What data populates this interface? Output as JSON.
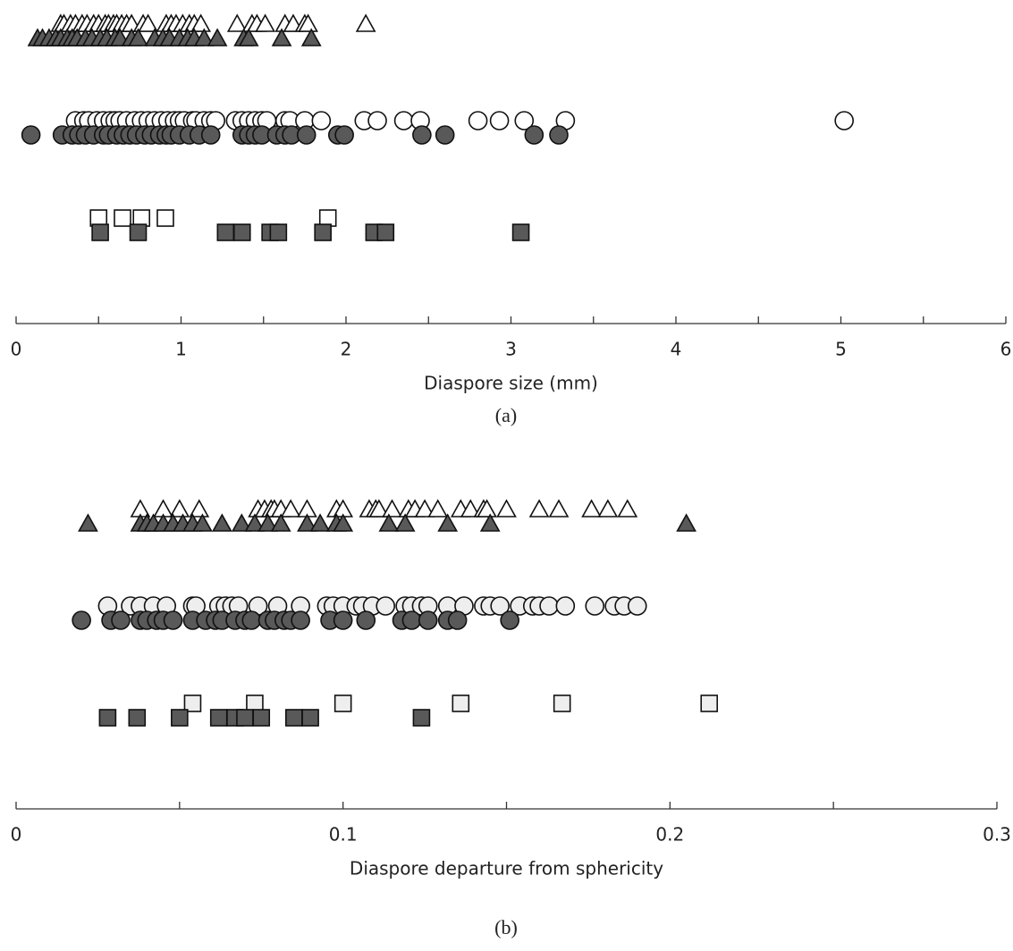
{
  "chart_data": [
    {
      "type": "strip",
      "xlabel": "Diaspore size (mm)",
      "caption": "(a)",
      "xlim": [
        0,
        6
      ],
      "xticks": [
        0,
        1,
        2,
        3,
        4,
        5,
        6
      ],
      "xminorticks": [
        0.5,
        1.5,
        2.5,
        3.5,
        4.5,
        5.5
      ],
      "series": [
        {
          "marker": "triangle",
          "color": "#ffffff",
          "values": [
            0.27,
            0.29,
            0.33,
            0.36,
            0.4,
            0.43,
            0.47,
            0.5,
            0.54,
            0.56,
            0.59,
            0.61,
            0.64,
            0.67,
            0.7,
            0.77,
            0.8,
            0.91,
            0.94,
            0.97,
            1.01,
            1.05,
            1.08,
            1.12,
            1.34,
            1.43,
            1.46,
            1.51,
            1.63,
            1.68,
            1.75,
            1.77,
            2.12
          ]
        },
        {
          "marker": "triangle",
          "color": "#595959",
          "values": [
            0.13,
            0.16,
            0.2,
            0.24,
            0.27,
            0.31,
            0.34,
            0.37,
            0.42,
            0.46,
            0.51,
            0.55,
            0.6,
            0.63,
            0.7,
            0.74,
            0.84,
            0.89,
            0.93,
            0.99,
            1.04,
            1.08,
            1.14,
            1.22,
            1.38,
            1.41,
            1.61,
            1.79
          ]
        },
        {
          "marker": "circle",
          "color": "#ffffff",
          "values": [
            0.36,
            0.41,
            0.44,
            0.49,
            0.53,
            0.57,
            0.6,
            0.63,
            0.67,
            0.72,
            0.76,
            0.8,
            0.84,
            0.88,
            0.92,
            0.96,
            0.99,
            1.02,
            1.07,
            1.09,
            1.14,
            1.18,
            1.21,
            1.33,
            1.37,
            1.41,
            1.45,
            1.49,
            1.52,
            1.63,
            1.66,
            1.75,
            1.85,
            2.11,
            2.19,
            2.35,
            2.45,
            2.8,
            2.93,
            3.08,
            3.33,
            5.02
          ]
        },
        {
          "marker": "circle",
          "color": "#595959",
          "values": [
            0.09,
            0.28,
            0.34,
            0.38,
            0.42,
            0.47,
            0.53,
            0.56,
            0.61,
            0.65,
            0.69,
            0.73,
            0.78,
            0.82,
            0.87,
            0.91,
            0.94,
            0.99,
            1.05,
            1.11,
            1.18,
            1.37,
            1.41,
            1.45,
            1.49,
            1.58,
            1.63,
            1.67,
            1.76,
            1.95,
            1.99,
            2.46,
            2.6,
            3.14,
            3.29
          ]
        },
        {
          "marker": "square",
          "color": "#ffffff",
          "values": [
            0.5,
            0.645,
            0.76,
            0.905,
            1.89
          ]
        },
        {
          "marker": "square",
          "color": "#595959",
          "values": [
            0.51,
            0.74,
            1.27,
            1.37,
            1.54,
            1.59,
            1.86,
            2.17,
            2.24,
            3.06
          ]
        }
      ]
    },
    {
      "type": "strip",
      "xlabel": "Diaspore departure from sphericity",
      "caption": "(b)",
      "xlim": [
        0,
        0.3
      ],
      "xticks": [
        0,
        0.1,
        0.2,
        0.3
      ],
      "xminorticks": [
        0.05,
        0.15,
        0.25
      ],
      "series": [
        {
          "marker": "triangle",
          "color": "#ffffff",
          "values": [
            0.038,
            0.045,
            0.05,
            0.056,
            0.074,
            0.076,
            0.078,
            0.079,
            0.081,
            0.084,
            0.089,
            0.098,
            0.1,
            0.108,
            0.11,
            0.111,
            0.115,
            0.12,
            0.122,
            0.125,
            0.129,
            0.136,
            0.139,
            0.143,
            0.144,
            0.15,
            0.16,
            0.166,
            0.176,
            0.181,
            0.187
          ]
        },
        {
          "marker": "triangle",
          "color": "#595959",
          "values": [
            0.022,
            0.038,
            0.04,
            0.042,
            0.045,
            0.048,
            0.051,
            0.054,
            0.057,
            0.063,
            0.069,
            0.073,
            0.077,
            0.081,
            0.089,
            0.093,
            0.098,
            0.1,
            0.114,
            0.119,
            0.132,
            0.145,
            0.205
          ]
        },
        {
          "marker": "circle",
          "color": "#eeeeee",
          "values": [
            0.028,
            0.035,
            0.038,
            0.042,
            0.046,
            0.054,
            0.055,
            0.062,
            0.064,
            0.066,
            0.068,
            0.074,
            0.08,
            0.087,
            0.095,
            0.097,
            0.1,
            0.104,
            0.106,
            0.109,
            0.113,
            0.119,
            0.121,
            0.124,
            0.126,
            0.132,
            0.137,
            0.143,
            0.145,
            0.148,
            0.154,
            0.158,
            0.16,
            0.163,
            0.168,
            0.177,
            0.183,
            0.186,
            0.19
          ]
        },
        {
          "marker": "circle",
          "color": "#595959",
          "values": [
            0.02,
            0.029,
            0.032,
            0.038,
            0.04,
            0.043,
            0.045,
            0.048,
            0.054,
            0.058,
            0.061,
            0.063,
            0.067,
            0.07,
            0.072,
            0.077,
            0.079,
            0.082,
            0.084,
            0.087,
            0.096,
            0.1,
            0.107,
            0.118,
            0.121,
            0.126,
            0.132,
            0.135,
            0.151
          ]
        },
        {
          "marker": "square",
          "color": "#eeeeee",
          "values": [
            0.054,
            0.073,
            0.1,
            0.136,
            0.167,
            0.212
          ]
        },
        {
          "marker": "square",
          "color": "#595959",
          "values": [
            0.028,
            0.037,
            0.05,
            0.062,
            0.067,
            0.07,
            0.075,
            0.085,
            0.09,
            0.124
          ]
        }
      ]
    }
  ]
}
